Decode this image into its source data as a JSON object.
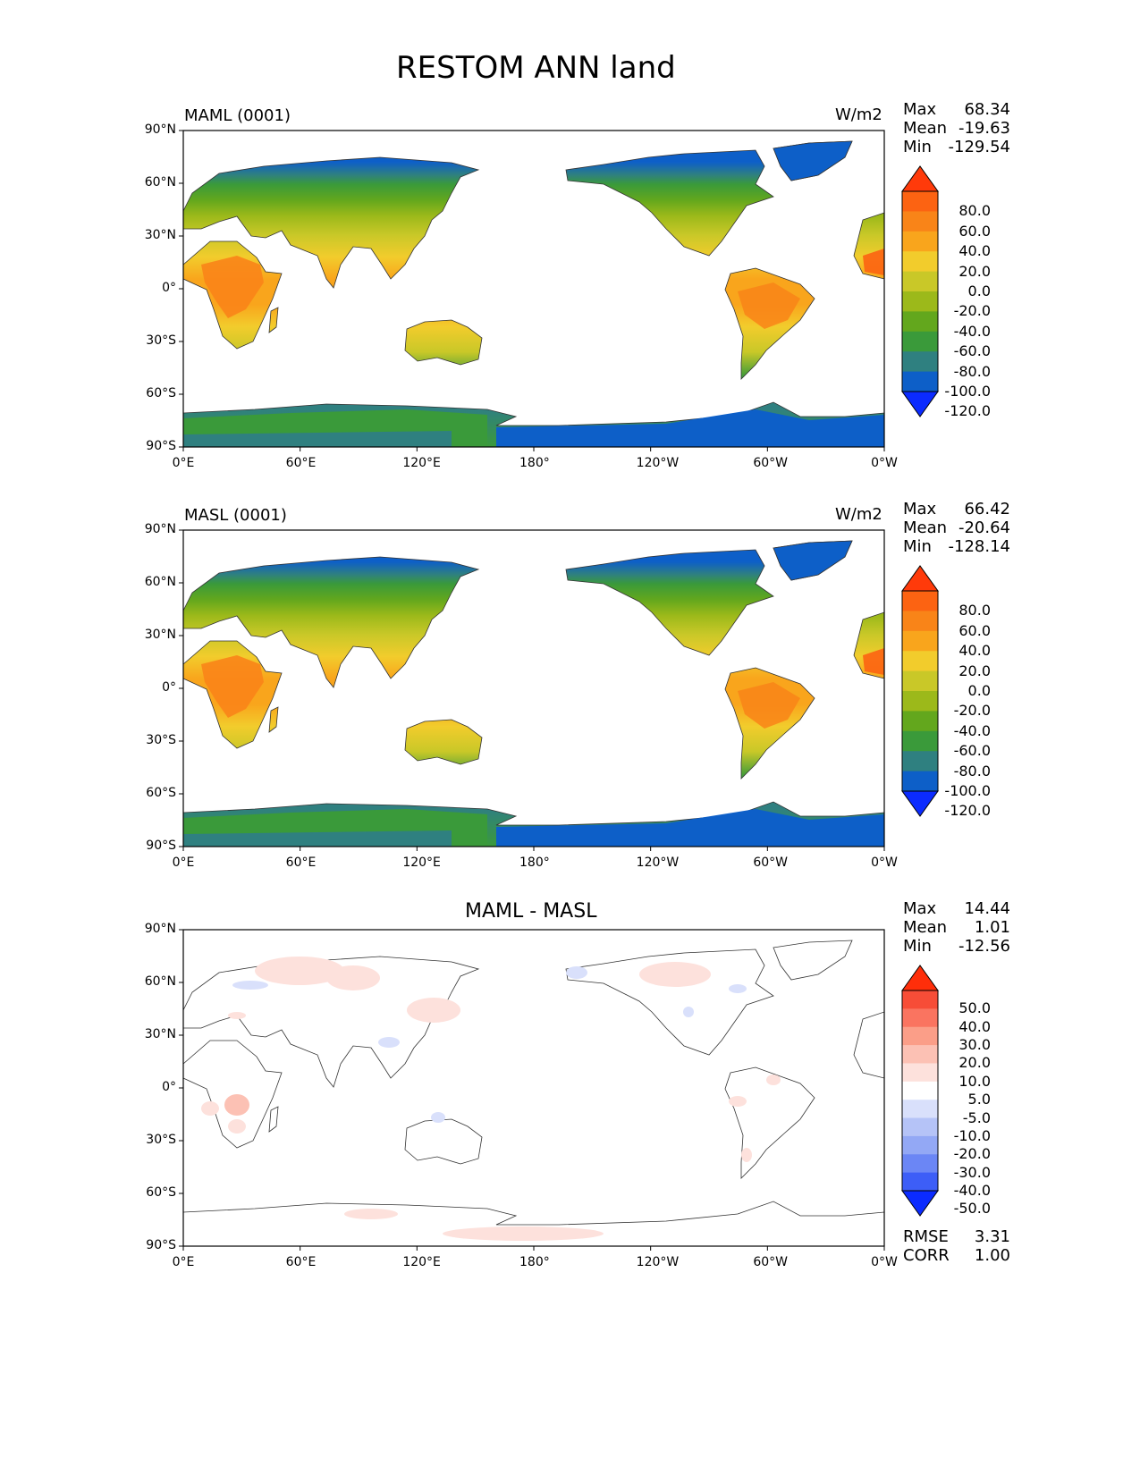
{
  "title": "RESTOM ANN land",
  "panels": [
    {
      "label": "MAML (0001)",
      "units": "W/m2",
      "stats": [
        {
          "name": "Max",
          "value": "68.34"
        },
        {
          "name": "Mean",
          "value": "-19.63"
        },
        {
          "name": "Min",
          "value": "-129.54"
        }
      ],
      "colorbar_labels": [
        "80.0",
        "60.0",
        "40.0",
        "20.0",
        "0.0",
        "-20.0",
        "-40.0",
        "-60.0",
        "-80.0",
        "-100.0",
        "-120.0"
      ]
    },
    {
      "label": "MASL (0001)",
      "units": "W/m2",
      "stats": [
        {
          "name": "Max",
          "value": "66.42"
        },
        {
          "name": "Mean",
          "value": "-20.64"
        },
        {
          "name": "Min",
          "value": "-128.14"
        }
      ],
      "colorbar_labels": [
        "80.0",
        "60.0",
        "40.0",
        "20.0",
        "0.0",
        "-20.0",
        "-40.0",
        "-60.0",
        "-80.0",
        "-100.0",
        "-120.0"
      ]
    },
    {
      "label": "MAML - MASL",
      "stats": [
        {
          "name": "Max",
          "value": "14.44"
        },
        {
          "name": "Mean",
          "value": "1.01"
        },
        {
          "name": "Min",
          "value": "-12.56"
        }
      ],
      "colorbar_labels": [
        "50.0",
        "40.0",
        "30.0",
        "20.0",
        "10.0",
        "5.0",
        "-5.0",
        "-10.0",
        "-20.0",
        "-30.0",
        "-40.0",
        "-50.0"
      ],
      "extra_stats": [
        {
          "name": "RMSE",
          "value": "3.31"
        },
        {
          "name": "CORR",
          "value": "1.00"
        }
      ]
    }
  ],
  "axes": {
    "lat_ticks": [
      "90°N",
      "60°N",
      "30°N",
      "0°",
      "30°S",
      "60°S",
      "90°S"
    ],
    "lon_ticks": [
      "0°E",
      "60°E",
      "120°E",
      "180°",
      "120°W",
      "60°W",
      "0°W"
    ]
  },
  "colors": {
    "abs_scale": [
      "#0b2bff",
      "#0d5fc8",
      "#2f8080",
      "#3a9a3a",
      "#63a71d",
      "#9cb91a",
      "#c9c828",
      "#f2cc2c",
      "#f9a51c",
      "#f98418",
      "#fc6312",
      "#ff3a0a"
    ],
    "diff_scale": [
      "#0b2bff",
      "#3d5ef7",
      "#6b86f5",
      "#93a8f5",
      "#b5c3f7",
      "#d9e0fb",
      "#ffffff",
      "#fde1dc",
      "#fcc1b4",
      "#fb9e88",
      "#fa7460",
      "#f74d37",
      "#ff2e0a"
    ]
  }
}
